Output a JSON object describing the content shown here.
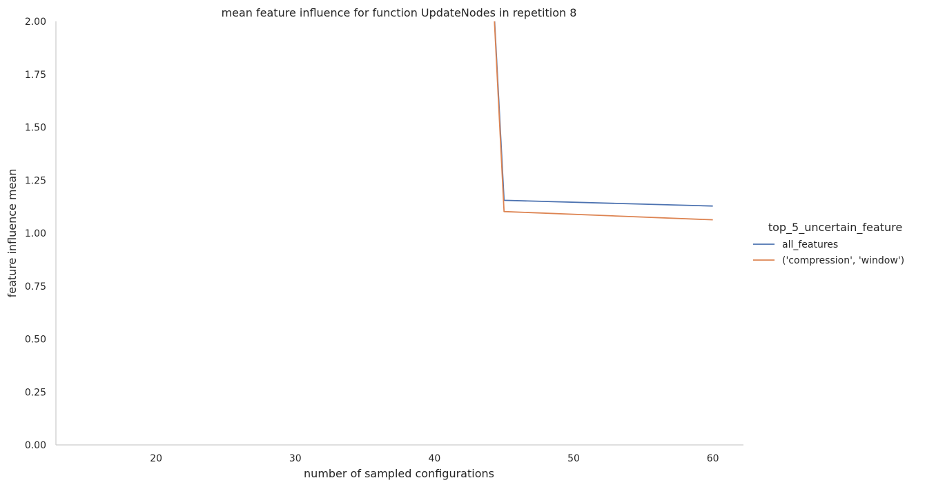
{
  "chart_data": {
    "type": "line",
    "title": "mean feature influence for function UpdateNodes in repetition 8",
    "xlabel": "number of sampled configurations",
    "ylabel": "feature influence mean",
    "xlim": [
      12.8,
      62.2
    ],
    "ylim": [
      0,
      2
    ],
    "x_ticks": [
      20,
      30,
      40,
      50,
      60
    ],
    "y_ticks": [
      "0.00",
      "0.25",
      "0.50",
      "0.75",
      "1.00",
      "1.25",
      "1.50",
      "1.75",
      "2.00"
    ],
    "grid": false,
    "legend": {
      "title": "top_5_uncertain_feature",
      "placement": "right-outside"
    },
    "series": [
      {
        "name": "all_features",
        "color": "#4c72b0",
        "points": [
          [
            44,
            2.4
          ],
          [
            45,
            1.155
          ],
          [
            60,
            1.128
          ]
        ]
      },
      {
        "name": "('compression', 'window')",
        "color": "#dd8452",
        "points": [
          [
            44,
            2.4
          ],
          [
            45,
            1.102
          ],
          [
            60,
            1.063
          ]
        ]
      }
    ]
  }
}
